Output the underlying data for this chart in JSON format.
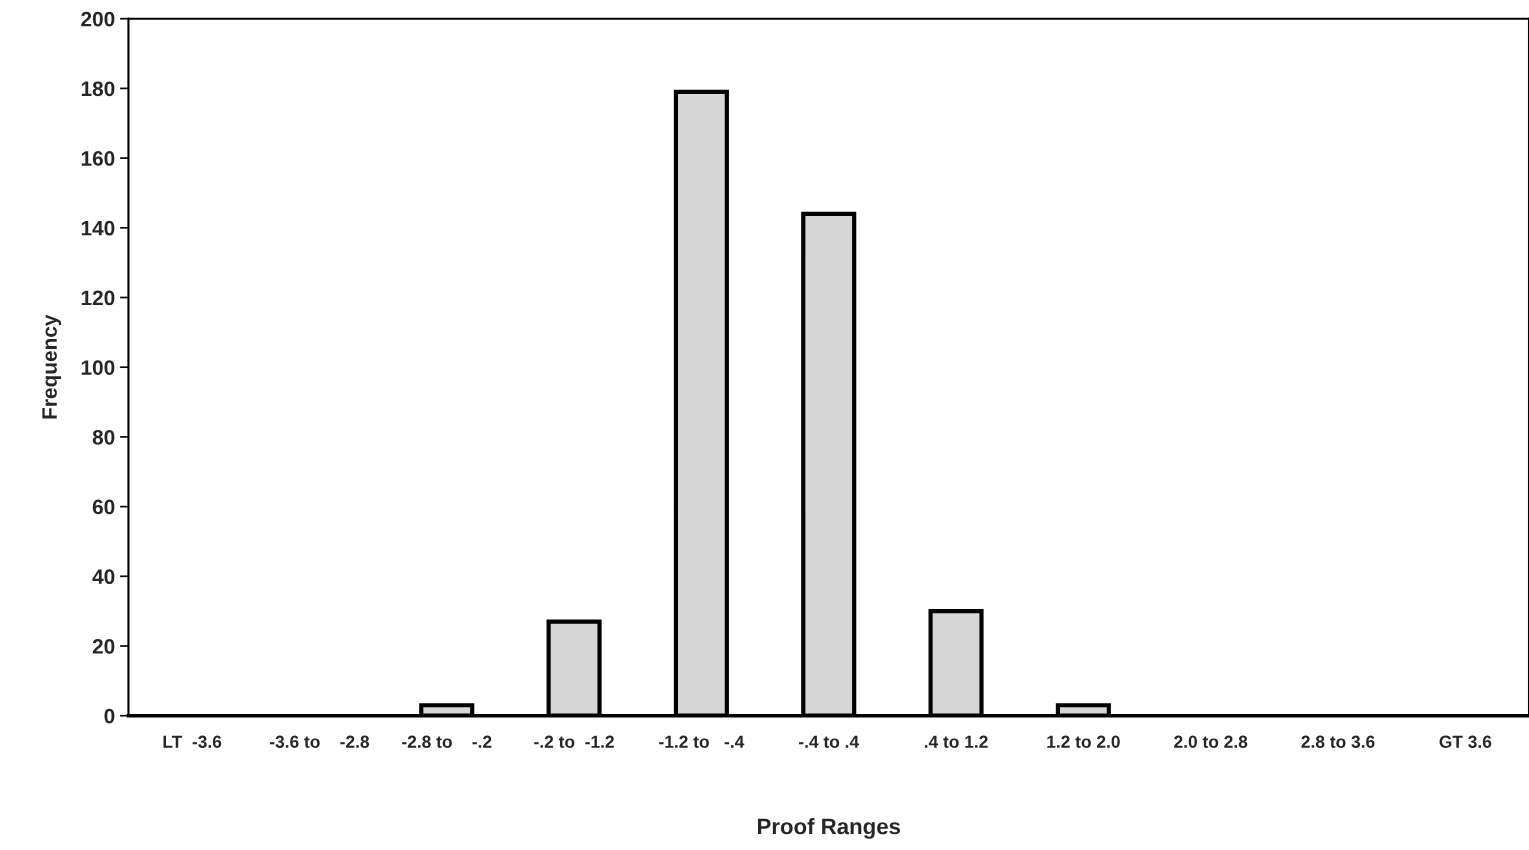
{
  "chart_data": {
    "type": "bar",
    "xlabel": "Proof Ranges",
    "ylabel": "Frequency",
    "categories": [
      "LT  -3.6",
      "-3.6 to    -2.8",
      "-2.8 to    -.2",
      "-.2 to  -1.2",
      "-1.2 to   -.4",
      "-.4 to .4",
      ".4 to 1.2",
      "1.2 to 2.0",
      "2.0 to 2.8",
      "2.8 to 3.6",
      "GT 3.6"
    ],
    "values": [
      0,
      0,
      3,
      27,
      179,
      144,
      30,
      3,
      0,
      0,
      0
    ],
    "color": "#d6d6d6",
    "ylim": [
      0,
      200
    ],
    "yticks": [
      0,
      20,
      40,
      60,
      80,
      100,
      120,
      140,
      160,
      180,
      200
    ],
    "grid": false,
    "legend": false
  }
}
